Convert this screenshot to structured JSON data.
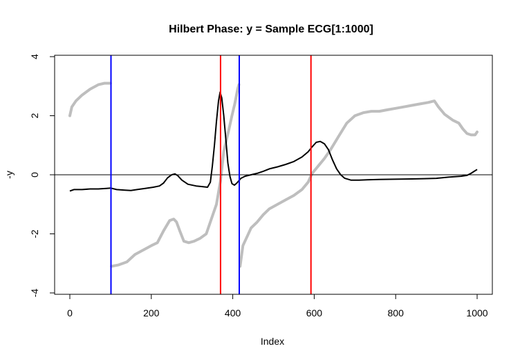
{
  "chart_data": {
    "type": "line",
    "title": "Hilbert Phase: y = Sample ECG[1:1000]",
    "xlabel": "Index",
    "ylabel": "-y",
    "xlim": [
      0,
      1000
    ],
    "ylim": [
      -4,
      4
    ],
    "x_ticks": [
      0,
      200,
      400,
      600,
      800,
      1000
    ],
    "y_ticks": [
      -4,
      -2,
      0,
      2,
      4
    ],
    "grid": false,
    "legend": "none",
    "hline": 0,
    "series": [
      {
        "role": "phase",
        "color": "#bebebe",
        "segments": [
          [
            [
              0,
              2.0
            ],
            [
              5,
              2.3
            ],
            [
              15,
              2.5
            ],
            [
              30,
              2.7
            ],
            [
              50,
              2.9
            ],
            [
              70,
              3.05
            ],
            [
              85,
              3.1
            ],
            [
              100,
              3.1
            ]
          ],
          [
            [
              102,
              -3.1
            ],
            [
              120,
              -3.05
            ],
            [
              140,
              -2.95
            ],
            [
              160,
              -2.7
            ],
            [
              180,
              -2.55
            ],
            [
              200,
              -2.4
            ],
            [
              215,
              -2.3
            ],
            [
              230,
              -1.9
            ],
            [
              245,
              -1.55
            ],
            [
              255,
              -1.5
            ],
            [
              262,
              -1.6
            ],
            [
              270,
              -1.9
            ],
            [
              280,
              -2.25
            ],
            [
              292,
              -2.3
            ],
            [
              305,
              -2.25
            ],
            [
              320,
              -2.15
            ],
            [
              335,
              -2.0
            ],
            [
              350,
              -1.4
            ],
            [
              360,
              -1.0
            ],
            [
              370,
              -0.2
            ],
            [
              378,
              0.8
            ],
            [
              390,
              1.5
            ],
            [
              398,
              2.0
            ],
            [
              405,
              2.4
            ],
            [
              412,
              2.9
            ],
            [
              415,
              3.05
            ]
          ],
          [
            [
              418,
              -3.1
            ],
            [
              425,
              -2.4
            ],
            [
              435,
              -2.1
            ],
            [
              445,
              -1.8
            ],
            [
              460,
              -1.6
            ],
            [
              475,
              -1.35
            ],
            [
              490,
              -1.15
            ],
            [
              510,
              -1.0
            ],
            [
              530,
              -0.85
            ],
            [
              550,
              -0.7
            ],
            [
              570,
              -0.5
            ],
            [
              585,
              -0.25
            ],
            [
              595,
              0.05
            ],
            [
              610,
              0.3
            ],
            [
              625,
              0.55
            ],
            [
              640,
              0.85
            ],
            [
              660,
              1.3
            ],
            [
              680,
              1.75
            ],
            [
              700,
              2.0
            ],
            [
              720,
              2.1
            ],
            [
              740,
              2.15
            ],
            [
              760,
              2.15
            ],
            [
              780,
              2.2
            ],
            [
              800,
              2.25
            ],
            [
              820,
              2.3
            ],
            [
              840,
              2.35
            ],
            [
              860,
              2.4
            ],
            [
              880,
              2.45
            ],
            [
              895,
              2.5
            ],
            [
              905,
              2.3
            ],
            [
              920,
              2.05
            ],
            [
              940,
              1.85
            ],
            [
              955,
              1.75
            ],
            [
              965,
              1.55
            ],
            [
              975,
              1.4
            ],
            [
              985,
              1.35
            ],
            [
              995,
              1.35
            ],
            [
              1000,
              1.45
            ]
          ]
        ]
      },
      {
        "role": "signal",
        "color": "#000000",
        "segments": [
          [
            [
              0,
              -0.55
            ],
            [
              10,
              -0.5
            ],
            [
              30,
              -0.5
            ],
            [
              50,
              -0.48
            ],
            [
              70,
              -0.48
            ],
            [
              90,
              -0.46
            ],
            [
              100,
              -0.45
            ],
            [
              115,
              -0.5
            ],
            [
              135,
              -0.52
            ],
            [
              150,
              -0.53
            ],
            [
              165,
              -0.5
            ],
            [
              185,
              -0.46
            ],
            [
              205,
              -0.42
            ],
            [
              220,
              -0.38
            ],
            [
              230,
              -0.28
            ],
            [
              240,
              -0.1
            ],
            [
              250,
              0.0
            ],
            [
              258,
              0.03
            ],
            [
              265,
              -0.03
            ],
            [
              275,
              -0.18
            ],
            [
              290,
              -0.32
            ],
            [
              310,
              -0.38
            ],
            [
              325,
              -0.4
            ],
            [
              338,
              -0.42
            ],
            [
              345,
              -0.25
            ],
            [
              350,
              0.3
            ],
            [
              355,
              1.0
            ],
            [
              360,
              1.8
            ],
            [
              365,
              2.5
            ],
            [
              369,
              2.8
            ],
            [
              373,
              2.6
            ],
            [
              378,
              2.0
            ],
            [
              383,
              1.2
            ],
            [
              388,
              0.4
            ],
            [
              393,
              -0.05
            ],
            [
              398,
              -0.3
            ],
            [
              404,
              -0.35
            ],
            [
              410,
              -0.28
            ],
            [
              415,
              -0.2
            ],
            [
              420,
              -0.12
            ],
            [
              430,
              -0.05
            ],
            [
              445,
              0.0
            ],
            [
              460,
              0.05
            ],
            [
              475,
              0.12
            ],
            [
              490,
              0.2
            ],
            [
              510,
              0.27
            ],
            [
              530,
              0.35
            ],
            [
              550,
              0.45
            ],
            [
              570,
              0.6
            ],
            [
              585,
              0.78
            ],
            [
              595,
              0.95
            ],
            [
              605,
              1.1
            ],
            [
              615,
              1.13
            ],
            [
              625,
              1.05
            ],
            [
              635,
              0.85
            ],
            [
              645,
              0.5
            ],
            [
              655,
              0.2
            ],
            [
              665,
              0.0
            ],
            [
              675,
              -0.12
            ],
            [
              690,
              -0.18
            ],
            [
              710,
              -0.18
            ],
            [
              730,
              -0.17
            ],
            [
              760,
              -0.16
            ],
            [
              800,
              -0.15
            ],
            [
              840,
              -0.14
            ],
            [
              870,
              -0.13
            ],
            [
              900,
              -0.12
            ],
            [
              930,
              -0.08
            ],
            [
              960,
              -0.05
            ],
            [
              975,
              -0.02
            ],
            [
              985,
              0.05
            ],
            [
              993,
              0.12
            ],
            [
              1000,
              0.18
            ]
          ]
        ]
      }
    ],
    "vlines": [
      {
        "x": 101,
        "color": "#0000ff"
      },
      {
        "x": 416,
        "color": "#0000ff"
      },
      {
        "x": 370,
        "color": "#ff0000"
      },
      {
        "x": 592,
        "color": "#ff0000"
      }
    ]
  }
}
